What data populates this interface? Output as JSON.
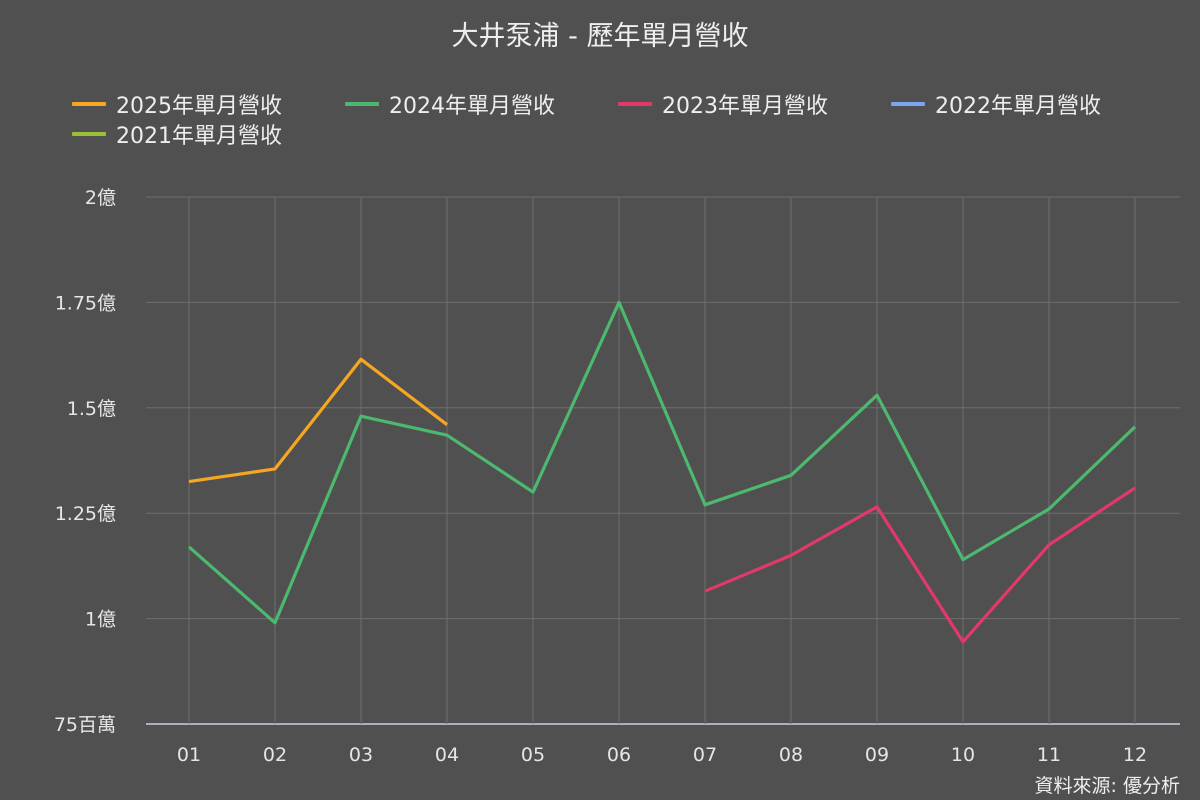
{
  "chart_data": {
    "type": "line",
    "title": "大井泵浦 - 歷年單月營收",
    "source": "資料來源: 優分析",
    "categories": [
      "01",
      "02",
      "03",
      "04",
      "05",
      "06",
      "07",
      "08",
      "09",
      "10",
      "11",
      "12"
    ],
    "ylim": [
      75000000,
      200000000
    ],
    "yticks": [
      {
        "value": 75000000,
        "label": "75百萬"
      },
      {
        "value": 100000000,
        "label": "1億"
      },
      {
        "value": 125000000,
        "label": "1.25億"
      },
      {
        "value": 150000000,
        "label": "1.5億"
      },
      {
        "value": 175000000,
        "label": "1.75億"
      },
      {
        "value": 200000000,
        "label": "2億"
      }
    ],
    "grid": true,
    "legend_position": "top",
    "series": [
      {
        "name": "2025年單月營收",
        "color": "#f5a623",
        "values": [
          132500000,
          135500000,
          161500000,
          146000000,
          null,
          null,
          null,
          null,
          null,
          null,
          null,
          null
        ]
      },
      {
        "name": "2024年單月營收",
        "color": "#4cb96f",
        "values": [
          117000000,
          99000000,
          148000000,
          143500000,
          130000000,
          175000000,
          127000000,
          134000000,
          153000000,
          114000000,
          126000000,
          145500000
        ]
      },
      {
        "name": "2023年單月營收",
        "color": "#e2396a",
        "values": [
          null,
          null,
          null,
          null,
          null,
          null,
          106500000,
          115000000,
          126500000,
          94500000,
          117500000,
          131000000
        ]
      },
      {
        "name": "2022年單月營收",
        "color": "#7aa6f0",
        "values": [
          null,
          null,
          null,
          null,
          null,
          null,
          null,
          null,
          null,
          null,
          null,
          null
        ]
      },
      {
        "name": "2021年單月營收",
        "color": "#9bbf35",
        "values": [
          null,
          null,
          null,
          null,
          null,
          null,
          null,
          null,
          null,
          null,
          null,
          null
        ]
      }
    ]
  }
}
